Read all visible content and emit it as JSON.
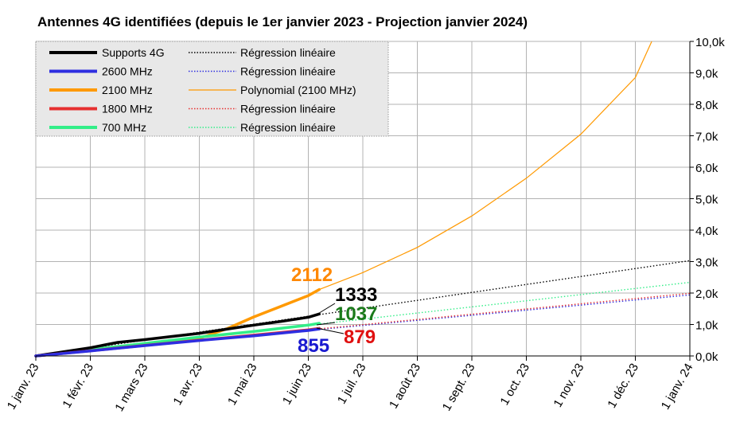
{
  "chart_data": {
    "type": "line",
    "title": "Antennes 4G identifiées (depuis le 1er janvier 2023 - Projection janvier 2024)",
    "xlabel": "",
    "ylabel": "",
    "x_ticks": [
      "1 janv. 23",
      "1 févr. 23",
      "1 mars 23",
      "1 avr. 23",
      "1 mai 23",
      "1 juin 23",
      "1 juil. 23",
      "1 août 23",
      "1 sept. 23",
      "1 oct. 23",
      "1 nov. 23",
      "1 déc. 23",
      "1 janv. 24"
    ],
    "y_ticks": [
      "0,0k",
      "1,0k",
      "2,0k",
      "3,0k",
      "4,0k",
      "5,0k",
      "6,0k",
      "7,0k",
      "8,0k",
      "9,0k",
      "10,0k"
    ],
    "ylim": [
      0,
      10000
    ],
    "xlim_months": [
      0,
      12
    ],
    "grid": true,
    "legend_position": "top-left",
    "series": [
      {
        "name": "Supports 4G",
        "color": "#000000",
        "style": "solid",
        "x": [
          0,
          1,
          1.5,
          2,
          2.5,
          3,
          3.5,
          4,
          4.5,
          5,
          5.2
        ],
        "values": [
          0,
          260,
          430,
          520,
          620,
          720,
          850,
          980,
          1100,
          1230,
          1333
        ]
      },
      {
        "name": "2600 MHz",
        "color": "#2e2ee0",
        "style": "solid",
        "x": [
          0,
          1,
          2,
          3,
          4,
          5,
          5.2
        ],
        "values": [
          0,
          160,
          330,
          490,
          640,
          810,
          855
        ]
      },
      {
        "name": "2100 MHz",
        "color": "#ff9900",
        "style": "solid",
        "x": [
          0,
          1,
          2,
          3,
          3.5,
          4,
          4.5,
          5,
          5.2
        ],
        "values": [
          0,
          170,
          340,
          560,
          860,
          1240,
          1580,
          1920,
          2112
        ]
      },
      {
        "name": "1800 MHz",
        "color": "#e63030",
        "style": "solid",
        "x": [
          0,
          1,
          2,
          3,
          4,
          5,
          5.2
        ],
        "values": [
          0,
          165,
          335,
          500,
          660,
          830,
          879
        ]
      },
      {
        "name": "700 MHz",
        "color": "#33ee88",
        "style": "solid",
        "x": [
          0,
          1,
          2,
          3,
          4,
          5,
          5.2
        ],
        "values": [
          0,
          200,
          400,
          600,
          780,
          980,
          1037
        ]
      }
    ],
    "trendlines": [
      {
        "name": "Régression linéaire",
        "for": "Supports 4G",
        "color": "#000000",
        "style": "dotted",
        "x": [
          0,
          12
        ],
        "values": [
          0,
          3030
        ]
      },
      {
        "name": "Régression linéaire",
        "for": "2600 MHz",
        "color": "#2e2ee0",
        "style": "dotted",
        "x": [
          0,
          12
        ],
        "values": [
          0,
          1940
        ]
      },
      {
        "name": "Polynomial (2100 MHz)",
        "for": "2100 MHz",
        "color": "#ff9900",
        "style": "thin",
        "x": [
          5.2,
          6,
          7,
          8,
          9,
          10,
          11,
          11.3
        ],
        "values": [
          2112,
          2650,
          3450,
          4450,
          5650,
          7050,
          8850,
          10000
        ]
      },
      {
        "name": "Régression linéaire",
        "for": "1800 MHz",
        "color": "#e63030",
        "style": "dotted",
        "x": [
          0,
          12
        ],
        "values": [
          0,
          1990
        ]
      },
      {
        "name": "Régression linéaire",
        "for": "700 MHz",
        "color": "#33ee88",
        "style": "dotted",
        "x": [
          0,
          12
        ],
        "values": [
          0,
          2340
        ]
      }
    ],
    "annotations": [
      {
        "text": "2112",
        "color": "#ff8800",
        "x": 5.2,
        "y": 2112
      },
      {
        "text": "1333",
        "color": "#000000",
        "x": 5.2,
        "y": 1333
      },
      {
        "text": "1037",
        "color": "#1a7a1a",
        "x": 5.2,
        "y": 1037
      },
      {
        "text": "879",
        "color": "#e01010",
        "x": 5.2,
        "y": 879
      },
      {
        "text": "855",
        "color": "#1a1ad0",
        "x": 5.2,
        "y": 855
      }
    ]
  }
}
